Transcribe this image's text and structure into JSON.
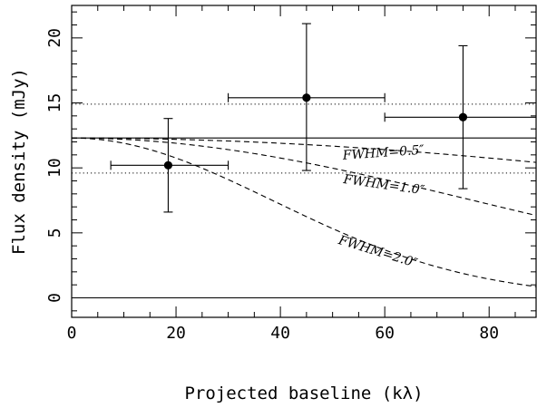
{
  "chart_data": {
    "type": "scatter",
    "xlabel": "Projected baseline (kλ)",
    "ylabel": "Flux density (mJy)",
    "xlim": [
      0,
      89
    ],
    "ylim": [
      -1.5,
      22.5
    ],
    "xticks": [
      0,
      20,
      40,
      60,
      80
    ],
    "yticks": [
      0,
      5,
      10,
      15,
      20
    ],
    "data_points": [
      {
        "x": 18.5,
        "y": 10.2,
        "xerr": [
          7.5,
          30.0
        ],
        "yerr": [
          6.6,
          13.8
        ]
      },
      {
        "x": 45.0,
        "y": 15.4,
        "xerr": [
          30.0,
          60.0
        ],
        "yerr": [
          9.8,
          21.1
        ]
      },
      {
        "x": 75.0,
        "y": 13.9,
        "xerr": [
          60.0,
          89.0
        ],
        "yerr": [
          8.4,
          19.4
        ]
      }
    ],
    "reference_lines": {
      "solid": [
        0.0,
        12.3
      ],
      "dotted": [
        14.9,
        9.6
      ]
    },
    "model_curves": [
      {
        "label": "FWHM=0.5″",
        "fwhm_arcsec": 0.5,
        "peak": 12.3
      },
      {
        "label": "FWHM=1.0″",
        "fwhm_arcsec": 1.0,
        "peak": 12.3
      },
      {
        "label": "FWHM=2.0″",
        "fwhm_arcsec": 2.0,
        "peak": 12.3
      }
    ]
  }
}
